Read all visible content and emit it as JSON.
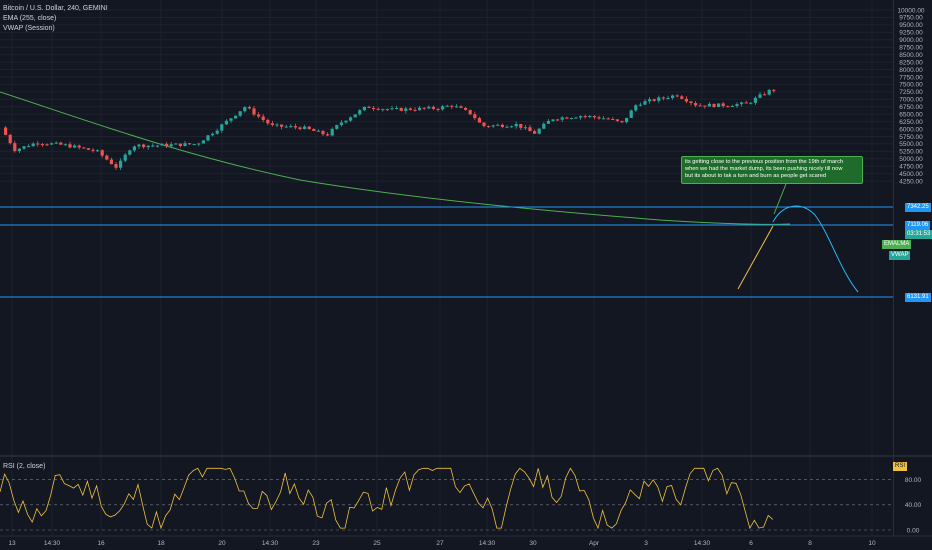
{
  "legend": {
    "symbol": "Bitcoin / U.S. Dollar, 240, GEMINI",
    "ema": "EMA (255, close)",
    "vwap": "VWAP (Session)",
    "rsi": "RSI (2, close)"
  },
  "annotation": {
    "text": "its getting close to the previous position from the 19th of march\nwhen we had the market dump, its been pushing nicely till now\nbut its about to tak a turn and burn as people get scared"
  },
  "price_axis": {
    "ticks": [
      "10000.00",
      "9750.00",
      "9500.00",
      "9250.00",
      "9000.00",
      "8750.00",
      "8500.00",
      "8250.00",
      "8000.00",
      "7750.00",
      "7500.00",
      "7250.00",
      "7000.00",
      "6750.00",
      "6500.00",
      "6250.00",
      "6000.00",
      "5750.00",
      "5500.00",
      "5250.00",
      "5000.00",
      "4750.00",
      "4500.00",
      "4250.00"
    ],
    "tag_7342": "7342.25",
    "tag_7119": "7119.06",
    "tag_countdown": "03:31:53",
    "tag_6131": "6131.91",
    "tag_emalma": "EMALMA",
    "tag_vwap": "VWAP"
  },
  "rsi_axis": {
    "ticks": [
      "80.00",
      "40.00",
      "0.00"
    ],
    "tag": "RSI"
  },
  "time_axis": {
    "labels": [
      "13",
      "14:30",
      "16",
      "18",
      "20",
      "14:30",
      "23",
      "25",
      "27",
      "14:30",
      "30",
      "Apr",
      "3",
      "14:30",
      "6",
      "8",
      "10"
    ]
  },
  "colors": {
    "background": "#131722",
    "up_candle": "#26a69a",
    "down_candle": "#ef5350",
    "ema_line": "#4caf50",
    "horizontal_line": "#2196f3",
    "rsi_line": "#f0c040",
    "projection_line": "#29b6f6",
    "trend_line": "#f0c040"
  }
}
